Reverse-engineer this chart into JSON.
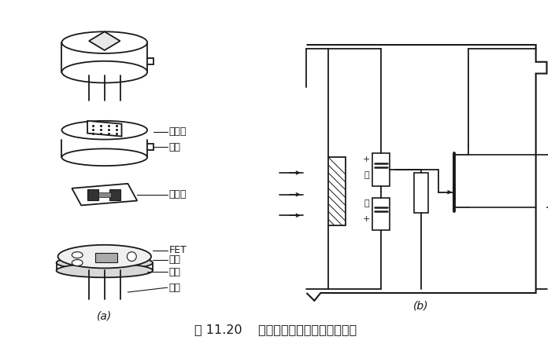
{
  "title": "图 11.20    热释电人体红外传感器的结构",
  "label_a": "(a)",
  "label_b": "(b)",
  "bg_color": "#ffffff",
  "line_color": "#1a1a1a",
  "fig_width": 7.0,
  "fig_height": 4.38,
  "dpi": 100
}
